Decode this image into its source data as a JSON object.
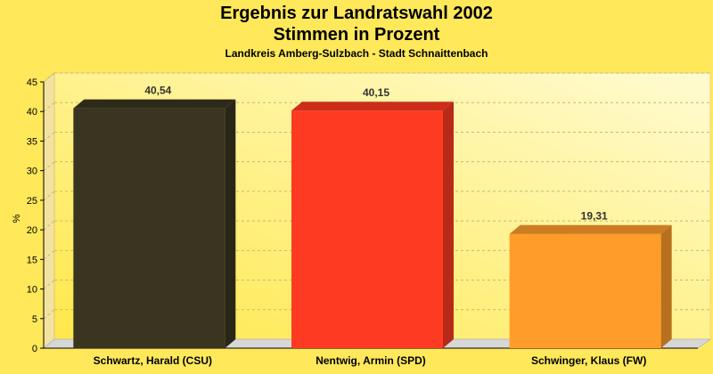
{
  "chart_data": {
    "type": "bar",
    "title": "Ergebnis zur Landratswahl 2002",
    "subtitle_line": "Stimmen in Prozent",
    "subtitle": "Landkreis Amberg-Sulzbach - Stadt Schnaittenbach",
    "ylabel": "%",
    "xlabel": "",
    "ylim": [
      0,
      45
    ],
    "yticks": [
      0,
      5,
      10,
      15,
      20,
      25,
      30,
      35,
      40,
      45
    ],
    "grid": true,
    "categories": [
      "Schwartz, Harald (CSU)",
      "Nentwig, Armin (SPD)",
      "Schwinger, Klaus (FW)"
    ],
    "values": [
      40.54,
      40.15,
      19.31
    ],
    "value_labels": [
      "40,54",
      "40,15",
      "19,31"
    ],
    "colors": [
      "#3a3520",
      "#ff3a22",
      "#ff9c2a"
    ]
  }
}
